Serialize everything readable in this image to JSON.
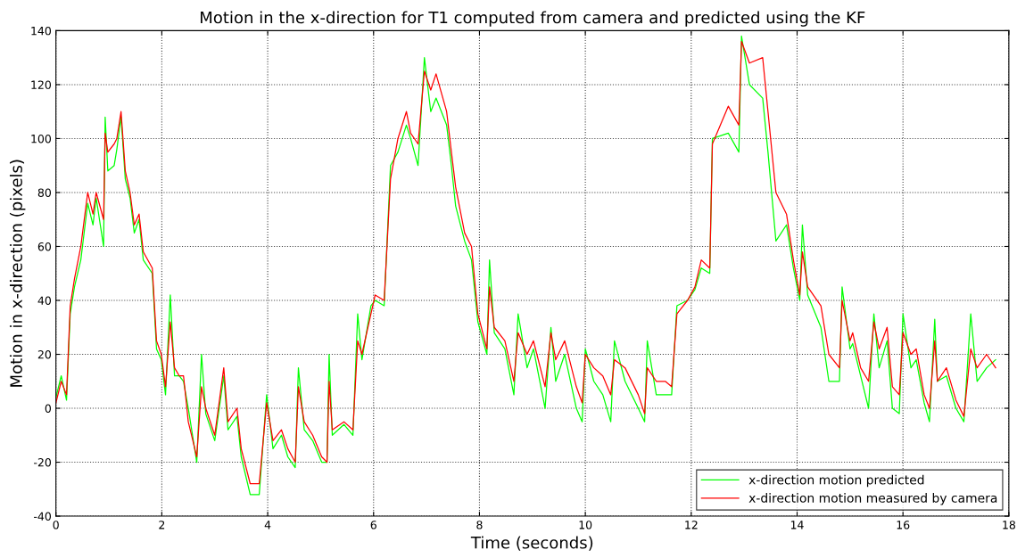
{
  "chart_data": {
    "type": "line",
    "title": "Motion in the x-direction for T1 computed from camera and predicted using the KF",
    "xlabel": "Time (seconds)",
    "ylabel": "Motion in x-direction (pixels)",
    "x": [
      0,
      0.1,
      0.2,
      0.27,
      0.35,
      0.47,
      0.6,
      0.7,
      0.76,
      0.9,
      0.93,
      0.98,
      1.1,
      1.15,
      1.23,
      1.31,
      1.4,
      1.48,
      1.57,
      1.65,
      1.82,
      1.9,
      1.99,
      2.07,
      2.16,
      2.24,
      2.33,
      2.41,
      2.5,
      2.66,
      2.75,
      2.83,
      3.0,
      3.17,
      3.25,
      3.42,
      3.5,
      3.67,
      3.84,
      3.98,
      4.1,
      4.26,
      4.38,
      4.52,
      4.58,
      4.69,
      4.85,
      5.02,
      5.12,
      5.16,
      5.22,
      5.44,
      5.61,
      5.7,
      5.78,
      5.95,
      6.03,
      6.2,
      6.32,
      6.46,
      6.62,
      6.7,
      6.84,
      6.96,
      7.08,
      7.18,
      7.38,
      7.47,
      7.55,
      7.72,
      7.85,
      7.97,
      8.14,
      8.19,
      8.28,
      8.48,
      8.65,
      8.73,
      8.9,
      9.02,
      9.24,
      9.35,
      9.44,
      9.61,
      9.83,
      9.94,
      10.0,
      10.16,
      10.33,
      10.48,
      10.55,
      10.75,
      11.0,
      11.12,
      11.17,
      11.34,
      11.51,
      11.63,
      11.73,
      11.93,
      12.07,
      12.19,
      12.35,
      12.4,
      12.7,
      12.9,
      12.95,
      13.1,
      13.35,
      13.45,
      13.6,
      13.8,
      13.93,
      14.05,
      14.1,
      14.2,
      14.45,
      14.6,
      14.8,
      14.85,
      15.0,
      15.05,
      15.2,
      15.35,
      15.45,
      15.55,
      15.7,
      15.8,
      15.93,
      16.0,
      16.15,
      16.25,
      16.4,
      16.5,
      16.6,
      16.65,
      16.82,
      17.0,
      17.15,
      17.28,
      17.4,
      17.58,
      17.75
    ],
    "series": [
      {
        "name": "x-direction motion predicted",
        "color": "#00ff00",
        "values": [
          4,
          12,
          3,
          35,
          45,
          55,
          76,
          68,
          78,
          60,
          108,
          88,
          90,
          96,
          108,
          85,
          78,
          65,
          70,
          55,
          50,
          22,
          18,
          5,
          42,
          12,
          12,
          10,
          0,
          -20,
          20,
          -2,
          -12,
          12,
          -8,
          -3,
          -18,
          -32,
          -32,
          5,
          -15,
          -10,
          -18,
          -22,
          15,
          -8,
          -12,
          -20,
          -20,
          20,
          -10,
          -6,
          -10,
          35,
          18,
          38,
          40,
          38,
          90,
          95,
          105,
          100,
          90,
          130,
          110,
          115,
          105,
          90,
          75,
          62,
          55,
          32,
          20,
          55,
          28,
          22,
          5,
          35,
          15,
          22,
          0,
          30,
          10,
          20,
          0,
          -5,
          22,
          10,
          5,
          -5,
          25,
          10,
          0,
          -5,
          25,
          5,
          5,
          5,
          38,
          40,
          44,
          52,
          50,
          100,
          102,
          95,
          138,
          120,
          115,
          95,
          62,
          68,
          52,
          40,
          68,
          42,
          30,
          10,
          10,
          45,
          22,
          24,
          12,
          0,
          35,
          15,
          25,
          0,
          -2,
          35,
          15,
          18,
          2,
          -5,
          33,
          10,
          12,
          0,
          -5,
          35,
          10,
          15,
          18
        ]
      },
      {
        "name": "x-direction motion measured by camera",
        "color": "#ff0000",
        "values": [
          2,
          10,
          5,
          38,
          48,
          60,
          80,
          72,
          80,
          70,
          102,
          95,
          98,
          100,
          110,
          88,
          80,
          68,
          72,
          58,
          52,
          25,
          20,
          8,
          32,
          15,
          12,
          12,
          -5,
          -18,
          8,
          0,
          -10,
          15,
          -5,
          0,
          -15,
          -28,
          -28,
          2,
          -12,
          -8,
          -15,
          -20,
          8,
          -5,
          -10,
          -18,
          -20,
          10,
          -8,
          -5,
          -8,
          25,
          20,
          35,
          42,
          40,
          85,
          100,
          110,
          102,
          98,
          125,
          118,
          124,
          110,
          95,
          82,
          65,
          60,
          35,
          22,
          45,
          30,
          25,
          10,
          28,
          20,
          25,
          8,
          28,
          18,
          25,
          8,
          2,
          20,
          15,
          12,
          5,
          18,
          15,
          5,
          -2,
          15,
          10,
          10,
          8,
          35,
          40,
          45,
          55,
          52,
          98,
          112,
          105,
          136,
          128,
          130,
          110,
          80,
          72,
          55,
          42,
          58,
          45,
          38,
          20,
          15,
          40,
          25,
          28,
          15,
          10,
          32,
          22,
          30,
          8,
          5,
          28,
          20,
          22,
          5,
          0,
          25,
          10,
          15,
          3,
          -3,
          22,
          15,
          20,
          15
        ]
      }
    ],
    "xlim": [
      0,
      18
    ],
    "xticks": [
      0,
      2,
      4,
      6,
      8,
      10,
      12,
      14,
      16,
      18
    ],
    "ylim": [
      -40,
      140
    ],
    "yticks": [
      -40,
      -20,
      0,
      20,
      40,
      60,
      80,
      100,
      120,
      140
    ],
    "grid": true,
    "legend": "bottom right",
    "marker": "none",
    "line_style": "solid"
  }
}
